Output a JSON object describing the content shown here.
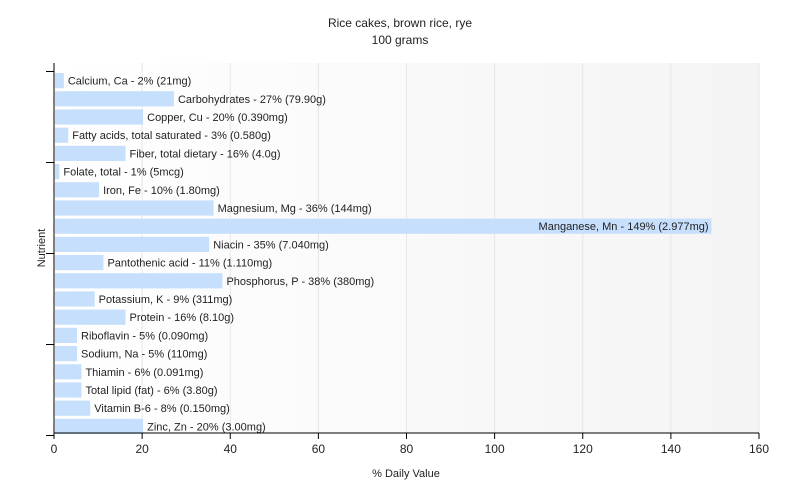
{
  "chart_data": {
    "type": "bar",
    "orientation": "horizontal",
    "title": "Rice cakes, brown rice, rye",
    "subtitle": "100 grams",
    "xlabel": "% Daily Value",
    "ylabel": "Nutrient",
    "xlim": [
      0,
      160
    ],
    "xticks": [
      0,
      20,
      40,
      60,
      80,
      100,
      120,
      140,
      160
    ],
    "grid": true,
    "bar_color": "#c6dffc",
    "categories": [
      "Calcium, Ca",
      "Carbohydrates",
      "Copper, Cu",
      "Fatty acids, total saturated",
      "Fiber, total dietary",
      "Folate, total",
      "Iron, Fe",
      "Magnesium, Mg",
      "Manganese, Mn",
      "Niacin",
      "Pantothenic acid",
      "Phosphorus, P",
      "Potassium, K",
      "Protein",
      "Riboflavin",
      "Sodium, Na",
      "Thiamin",
      "Total lipid (fat)",
      "Vitamin B-6",
      "Zinc, Zn"
    ],
    "values": [
      2,
      27,
      20,
      3,
      16,
      1,
      10,
      36,
      149,
      35,
      11,
      38,
      9,
      16,
      5,
      5,
      6,
      6,
      8,
      20
    ],
    "labels": [
      "Calcium, Ca - 2% (21mg)",
      "Carbohydrates - 27% (79.90g)",
      "Copper, Cu - 20% (0.390mg)",
      "Fatty acids, total saturated - 3% (0.580g)",
      "Fiber, total dietary - 16% (4.0g)",
      "Folate, total - 1% (5mcg)",
      "Iron, Fe - 10% (1.80mg)",
      "Magnesium, Mg - 36% (144mg)",
      "Manganese, Mn - 149% (2.977mg)",
      "Niacin - 35% (7.040mg)",
      "Pantothenic acid - 11% (1.110mg)",
      "Phosphorus, P - 38% (380mg)",
      "Potassium, K - 9% (311mg)",
      "Protein - 16% (8.10g)",
      "Riboflavin - 5% (0.090mg)",
      "Sodium, Na - 5% (110mg)",
      "Thiamin - 6% (0.091mg)",
      "Total lipid (fat) - 6% (3.80g)",
      "Vitamin B-6 - 8% (0.150mg)",
      "Zinc, Zn - 20% (3.00mg)"
    ]
  }
}
